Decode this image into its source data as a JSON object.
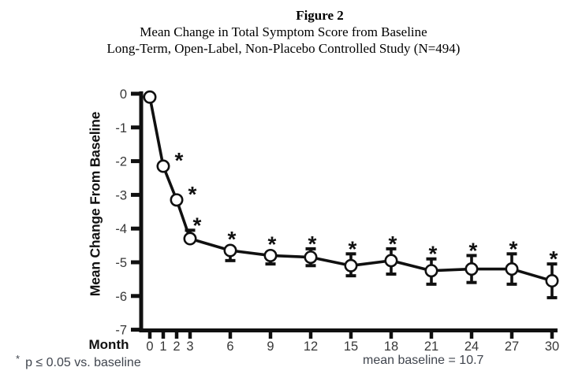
{
  "chart_data": {
    "type": "line",
    "title": "Figure 2",
    "subtitle": [
      "Mean Change in Total Symptom Score from Baseline",
      "Long-Term, Open-Label, Non-Placebo Controlled Study (N=494)"
    ],
    "xlabel": "Month",
    "ylabel": "Mean Change From Baseline",
    "x": [
      0,
      1,
      2,
      3,
      6,
      9,
      12,
      15,
      18,
      21,
      24,
      27,
      30
    ],
    "y": [
      -0.1,
      -2.15,
      -3.15,
      -4.3,
      -4.65,
      -4.8,
      -4.85,
      -5.1,
      -4.95,
      -5.25,
      -5.2,
      -5.2,
      -5.55
    ],
    "err_up": [
      0,
      0,
      0,
      0.25,
      0,
      0,
      0.25,
      0.35,
      0.35,
      0.35,
      0.4,
      0.45,
      0.5
    ],
    "err_down": [
      0,
      0,
      0,
      0,
      0.3,
      0.25,
      0.25,
      0.3,
      0.4,
      0.4,
      0.4,
      0.45,
      0.5
    ],
    "significant": [
      false,
      true,
      true,
      true,
      true,
      true,
      true,
      true,
      true,
      true,
      true,
      true,
      true
    ],
    "sig_symbol": "*",
    "marker": "open-circle",
    "xlim": [
      0,
      30
    ],
    "ylim": [
      -7,
      0
    ],
    "xticks": [
      0,
      1,
      2,
      3,
      6,
      9,
      12,
      15,
      18,
      21,
      24,
      27,
      30
    ],
    "yticks": [
      0,
      -1,
      -2,
      -3,
      -4,
      -5,
      -6,
      -7
    ],
    "grid": "off",
    "legend": "none",
    "annotations": {
      "sig_note_symbol": "*",
      "sig_note": "p ≤ 0.05 vs. baseline",
      "baseline_note": "mean baseline = 10.7"
    },
    "colors": {
      "line": "#101010",
      "marker_fill": "#ffffff",
      "axis": "#101010",
      "tick_label": "#383838",
      "footnote_text": "#40454e"
    }
  }
}
